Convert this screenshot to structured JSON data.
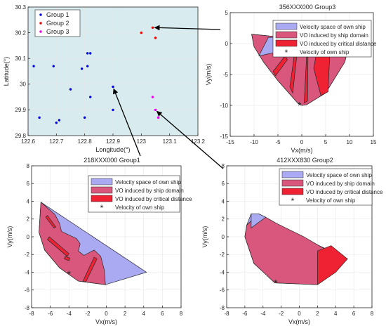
{
  "colors": {
    "map_bg": "#d8ecf0",
    "group1": "#0000ee",
    "group2": "#ee0000",
    "group3": "#ee00ee",
    "velocity_space": "#aaaaf2",
    "vo_domain": "#d9577c",
    "vo_critical": "#ee2233",
    "own_ship": "#000000",
    "arrow": "#000000"
  },
  "chart_data": [
    {
      "id": "map",
      "type": "scatter",
      "xlabel": "Longitude(°)",
      "ylabel": "Latitude(°)",
      "xlim": [
        122.6,
        123.2
      ],
      "ylim": [
        29.8,
        30.3
      ],
      "xticks": [
        "122.6",
        "122.7",
        "122.8",
        "122.9",
        "123",
        "123.1",
        "123.2"
      ],
      "yticks": [
        "29.8",
        "29.9",
        "30",
        "30.1",
        "30.2",
        "30.3"
      ],
      "legend": [
        "Group 1",
        "Group 2",
        "Group 3"
      ],
      "legend_position": "top-left",
      "series": [
        {
          "name": "Group 1",
          "points": [
            [
              122.62,
              30.07
            ],
            [
              122.64,
              29.87
            ],
            [
              122.69,
              30.07
            ],
            [
              122.7,
              29.85
            ],
            [
              122.71,
              29.86
            ],
            [
              122.75,
              29.98
            ],
            [
              122.79,
              30.06
            ],
            [
              122.8,
              29.87
            ],
            [
              122.81,
              30.07
            ],
            [
              122.81,
              30.12
            ],
            [
              122.82,
              30.12
            ],
            [
              122.82,
              29.95
            ],
            [
              122.9,
              29.99
            ],
            [
              122.9,
              29.9
            ]
          ]
        },
        {
          "name": "Group 2",
          "points": [
            [
              123.0,
              30.2
            ],
            [
              123.04,
              30.22
            ],
            [
              123.05,
              30.18
            ]
          ]
        },
        {
          "name": "Group 3",
          "points": [
            [
              123.04,
              29.95
            ],
            [
              123.05,
              29.9
            ],
            [
              123.06,
              29.87
            ]
          ]
        }
      ]
    },
    {
      "id": "vo-group3",
      "type": "area",
      "title": "356XXX000    Group3",
      "xlabel": "Vx(m/s)",
      "ylabel": "Vy(m/s)",
      "xlim": [
        -15,
        15
      ],
      "ylim": [
        -15,
        5
      ],
      "xticks": [
        "-15",
        "-10",
        "-5",
        "0",
        "5",
        "10",
        "15"
      ],
      "yticks": [
        "-15",
        "-10",
        "-5",
        "0",
        "5"
      ],
      "legend": [
        "Velocity space of own ship",
        "VO induced by ship domain",
        "VO induced by critical distance",
        "Velocity of own ship"
      ],
      "legend_position": "top",
      "velocity_space": [
        [
          -10.5,
          1.5
        ],
        [
          -10,
          -0.5
        ],
        [
          -8,
          -3
        ],
        [
          -5,
          -6
        ],
        [
          -1,
          -9.5
        ],
        [
          0,
          -10
        ],
        [
          1,
          -9.9
        ],
        [
          5,
          -8
        ],
        [
          9,
          -3
        ],
        [
          10,
          0
        ]
      ],
      "vo_domain": [
        [
          -10.5,
          1.5
        ],
        [
          -10,
          -0.5
        ],
        [
          -8,
          -3
        ],
        [
          -5,
          -6
        ],
        [
          -1,
          -9.5
        ],
        [
          0,
          -10
        ],
        [
          1,
          -9.9
        ],
        [
          5,
          -8
        ],
        [
          9,
          -3
        ],
        [
          10,
          0
        ]
      ],
      "cutouts": [
        [
          [
            -9,
            -2
          ],
          [
            -7,
            1
          ],
          [
            -5,
            1
          ],
          [
            -6,
            -1.5
          ]
        ]
      ],
      "vo_critical": [
        [
          [
            -6,
            -4.5
          ],
          [
            -3.5,
            -2
          ],
          [
            -3,
            -2.6
          ],
          [
            -5.5,
            -5.2
          ]
        ],
        [
          [
            -2.5,
            -7
          ],
          [
            -1.5,
            -1.5
          ],
          [
            -1,
            -1.6
          ],
          [
            -1.9,
            -8
          ]
        ],
        [
          [
            0.5,
            -9.6
          ],
          [
            1,
            -2.2
          ],
          [
            1.3,
            -2.2
          ],
          [
            1.2,
            -9.3
          ]
        ],
        [
          [
            2.5,
            -4
          ],
          [
            3.5,
            0.2
          ],
          [
            6,
            0.5
          ],
          [
            5.5,
            -7.8
          ],
          [
            4,
            -8.4
          ]
        ]
      ],
      "own_ship": [
        -0.5,
        -10
      ]
    },
    {
      "id": "vo-group1",
      "type": "area",
      "title": "218XXX000    Group1",
      "xlabel": "Vx(m/s)",
      "ylabel": "Vy(m/s)",
      "xlim": [
        -8,
        8
      ],
      "ylim": [
        -8,
        8
      ],
      "xticks": [
        "-8",
        "-6",
        "-4",
        "-2",
        "0",
        "2",
        "4",
        "6",
        "8"
      ],
      "yticks": [
        "-8",
        "-6",
        "-4",
        "-2",
        "0",
        "2",
        "4",
        "6",
        "8"
      ],
      "legend": [
        "Velocity space of own ship",
        "VO induced by ship domain",
        "VO induced by critical distance",
        "Velocity of own ship"
      ],
      "legend_position": "top-right",
      "velocity_space": [
        [
          -7,
          3.9
        ],
        [
          4.3,
          -4
        ],
        [
          -0.1,
          -5.4
        ],
        [
          -3,
          -5
        ],
        [
          -5,
          -3.5
        ],
        [
          -6.6,
          -1.5
        ],
        [
          -7.2,
          0.5
        ]
      ],
      "vo_domain": [
        [
          -7,
          3.9
        ],
        [
          -5.5,
          2.5
        ],
        [
          -5,
          1.5
        ],
        [
          -4.8,
          0.6
        ],
        [
          -4.2,
          0.3
        ],
        [
          -3.2,
          -0.2
        ],
        [
          -2.8,
          -0.8
        ],
        [
          -3,
          -1.6
        ],
        [
          -2.4,
          -2.1
        ],
        [
          -1.3,
          -1.5
        ],
        [
          -0.6,
          -2.2
        ],
        [
          -0.2,
          -3.8
        ],
        [
          -0.1,
          -5.4
        ],
        [
          -3,
          -5
        ],
        [
          -5,
          -3.5
        ],
        [
          -6.6,
          -1.5
        ],
        [
          -7.2,
          0.5
        ]
      ],
      "cutouts": [],
      "vo_critical": [
        [
          [
            -6.5,
            2.2
          ],
          [
            -5.6,
            1
          ],
          [
            -5.4,
            1.1
          ],
          [
            -6.3,
            2.4
          ]
        ],
        [
          [
            -6.3,
            -0.3
          ],
          [
            -4.2,
            -2.2
          ],
          [
            -4,
            -1.9
          ],
          [
            -6.1,
            0
          ]
        ],
        [
          [
            -4.5,
            -2.5
          ],
          [
            -4,
            -2.7
          ],
          [
            -3.9,
            -2.4
          ],
          [
            -4.4,
            -2.2
          ]
        ],
        [
          [
            -2.5,
            -5
          ],
          [
            -1.3,
            -2.3
          ],
          [
            -1,
            -2.5
          ],
          [
            -2.2,
            -5.1
          ]
        ]
      ],
      "own_ship": [
        -4,
        -4.2
      ]
    },
    {
      "id": "vo-group2",
      "type": "area",
      "title": "412XXX830    Group2",
      "xlabel": "Vx(m/s)",
      "ylabel": "Vy(m/s)",
      "xlim": [
        -8,
        8
      ],
      "ylim": [
        -8,
        8
      ],
      "xticks": [
        "-8",
        "-6",
        "-4",
        "-2",
        "0",
        "2",
        "4",
        "6",
        "8"
      ],
      "yticks": [
        "-8",
        "-6",
        "-4",
        "-2",
        "0",
        "2",
        "4",
        "6",
        "8"
      ],
      "legend": [
        "Velocity space of own ship",
        "VO induced by ship domain",
        "VO induced by critical distance",
        "Velocity of own ship"
      ],
      "legend_position": "top-right",
      "velocity_space": [
        [
          -5.3,
          2.6
        ],
        [
          5.3,
          -2.5
        ],
        [
          2,
          -5.4
        ],
        [
          -2.7,
          -5.2
        ],
        [
          -5,
          -3
        ],
        [
          -6,
          0
        ],
        [
          -5.8,
          1.3
        ]
      ],
      "vo_domain": [
        [
          -4.5,
          2.6
        ],
        [
          -3.7,
          2.2
        ],
        [
          -2.5,
          1.5
        ],
        [
          0.5,
          0
        ],
        [
          2.5,
          -1.2
        ],
        [
          5.3,
          -2.5
        ],
        [
          2,
          -5.4
        ],
        [
          -2.7,
          -5.2
        ],
        [
          -5,
          -3
        ],
        [
          -6,
          0
        ],
        [
          -5.8,
          1.3
        ]
      ],
      "cutouts": [
        [
          [
            -5.3,
            2.6
          ],
          [
            -4.5,
            2.6
          ],
          [
            -3.7,
            2.2
          ],
          [
            -5.3,
            1
          ]
        ]
      ],
      "vo_critical": [
        [
          [
            2,
            -1.6
          ],
          [
            3.5,
            -1
          ],
          [
            5.3,
            -2.5
          ],
          [
            4,
            -4
          ],
          [
            2,
            -5.4
          ]
        ]
      ],
      "own_ship": [
        -2.6,
        -5.2
      ]
    }
  ],
  "arrows": [
    {
      "from": "vo-group3",
      "to_group": "Group 2"
    },
    {
      "from": "vo-group1",
      "to_group": "Group 1"
    },
    {
      "from": "vo-group2",
      "to_group": "Group 3"
    }
  ]
}
